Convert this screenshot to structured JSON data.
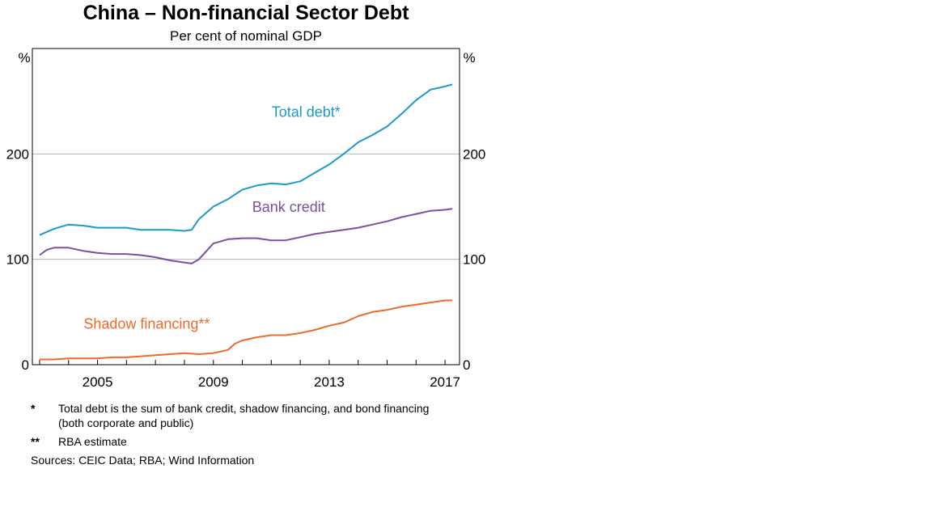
{
  "chart_data": {
    "type": "line",
    "title": "China – Non-financial Sector Debt",
    "subtitle": "Per cent of nominal GDP",
    "ylabel_left": "%",
    "ylabel_right": "%",
    "ylim": [
      0,
      300
    ],
    "yticks": [
      0,
      100,
      200
    ],
    "xlim": [
      2002.75,
      2017.5
    ],
    "xticks": [
      2005,
      2009,
      2013,
      2017
    ],
    "grid": true,
    "series": [
      {
        "name": "Total debt*",
        "color": "#1b9ac9",
        "label_pos": [
          2012.2,
          235
        ],
        "points": [
          [
            2003.0,
            123
          ],
          [
            2003.5,
            129
          ],
          [
            2004.0,
            133
          ],
          [
            2004.5,
            132
          ],
          [
            2005.0,
            130
          ],
          [
            2005.5,
            130
          ],
          [
            2006.0,
            130
          ],
          [
            2006.5,
            128
          ],
          [
            2007.0,
            128
          ],
          [
            2007.5,
            128
          ],
          [
            2008.0,
            127
          ],
          [
            2008.25,
            128
          ],
          [
            2008.5,
            138
          ],
          [
            2009.0,
            150
          ],
          [
            2009.5,
            157
          ],
          [
            2010.0,
            166
          ],
          [
            2010.5,
            170
          ],
          [
            2011.0,
            172
          ],
          [
            2011.5,
            171
          ],
          [
            2012.0,
            174
          ],
          [
            2012.5,
            182
          ],
          [
            2013.0,
            190
          ],
          [
            2013.5,
            200
          ],
          [
            2014.0,
            211
          ],
          [
            2014.5,
            218
          ],
          [
            2015.0,
            226
          ],
          [
            2015.5,
            238
          ],
          [
            2016.0,
            251
          ],
          [
            2016.5,
            261
          ],
          [
            2017.0,
            264
          ],
          [
            2017.25,
            266
          ]
        ]
      },
      {
        "name": "Bank credit",
        "color": "#7d4fa0",
        "label_pos": [
          2011.6,
          145
        ],
        "points": [
          [
            2003.0,
            104
          ],
          [
            2003.25,
            109
          ],
          [
            2003.5,
            111
          ],
          [
            2004.0,
            111
          ],
          [
            2004.5,
            108
          ],
          [
            2005.0,
            106
          ],
          [
            2005.5,
            105
          ],
          [
            2006.0,
            105
          ],
          [
            2006.5,
            104
          ],
          [
            2007.0,
            102
          ],
          [
            2007.5,
            99
          ],
          [
            2008.0,
            97
          ],
          [
            2008.25,
            96
          ],
          [
            2008.5,
            100
          ],
          [
            2009.0,
            115
          ],
          [
            2009.5,
            119
          ],
          [
            2010.0,
            120
          ],
          [
            2010.5,
            120
          ],
          [
            2011.0,
            118
          ],
          [
            2011.5,
            118
          ],
          [
            2012.0,
            121
          ],
          [
            2012.5,
            124
          ],
          [
            2013.0,
            126
          ],
          [
            2013.5,
            128
          ],
          [
            2014.0,
            130
          ],
          [
            2014.5,
            133
          ],
          [
            2015.0,
            136
          ],
          [
            2015.5,
            140
          ],
          [
            2016.0,
            143
          ],
          [
            2016.5,
            146
          ],
          [
            2017.0,
            147
          ],
          [
            2017.25,
            148
          ]
        ]
      },
      {
        "name": "Shadow financing**",
        "color": "#ec6a2a",
        "label_pos": [
          2006.7,
          34
        ],
        "points": [
          [
            2003.0,
            5
          ],
          [
            2003.5,
            5
          ],
          [
            2004.0,
            6
          ],
          [
            2004.5,
            6
          ],
          [
            2005.0,
            6
          ],
          [
            2005.5,
            7
          ],
          [
            2006.0,
            7
          ],
          [
            2006.5,
            8
          ],
          [
            2007.0,
            9
          ],
          [
            2007.5,
            10
          ],
          [
            2008.0,
            11
          ],
          [
            2008.5,
            10
          ],
          [
            2009.0,
            11
          ],
          [
            2009.5,
            14
          ],
          [
            2009.75,
            20
          ],
          [
            2010.0,
            23
          ],
          [
            2010.5,
            26
          ],
          [
            2011.0,
            28
          ],
          [
            2011.5,
            28
          ],
          [
            2012.0,
            30
          ],
          [
            2012.5,
            33
          ],
          [
            2013.0,
            37
          ],
          [
            2013.5,
            40
          ],
          [
            2014.0,
            46
          ],
          [
            2014.5,
            50
          ],
          [
            2015.0,
            52
          ],
          [
            2015.5,
            55
          ],
          [
            2016.0,
            57
          ],
          [
            2016.5,
            59
          ],
          [
            2017.0,
            61
          ],
          [
            2017.25,
            61
          ]
        ]
      }
    ]
  },
  "notes": [
    {
      "mark": "*",
      "text": "Total debt is the sum of bank credit, shadow financing, and bond financing (both corporate and public)"
    },
    {
      "mark": "**",
      "text": "RBA estimate"
    }
  ],
  "sources": "Sources: CEIC Data; RBA; Wind Information"
}
